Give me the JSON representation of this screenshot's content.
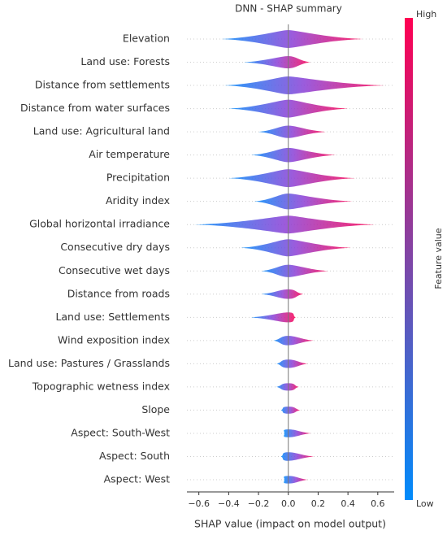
{
  "chart_data": {
    "type": "beeswarm",
    "title": "DNN - SHAP summary",
    "x_label": "SHAP value (impact on model output)",
    "categories": [
      "Elevation",
      "Land use: Forests",
      "Distance from settlements",
      "Distance from water surfaces",
      "Land use: Agricultural land",
      "Air temperature",
      "Precipitation",
      "Aridity index",
      "Global horizontal irradiance",
      "Consecutive dry days",
      "Consecutive wet days",
      "Distance from roads",
      "Land use: Settlements",
      "Wind exposition index",
      "Land use: Pastures / Grasslands",
      "Topographic wetness index",
      "Slope",
      "Aspect: South-West",
      "Aspect: South",
      "Aspect: West"
    ],
    "ranges": [
      [
        -0.45,
        0.5
      ],
      [
        -0.3,
        0.15
      ],
      [
        -0.43,
        0.65
      ],
      [
        -0.4,
        0.4
      ],
      [
        -0.2,
        0.25
      ],
      [
        -0.25,
        0.32
      ],
      [
        -0.4,
        0.45
      ],
      [
        -0.23,
        0.43
      ],
      [
        -0.63,
        0.58
      ],
      [
        -0.32,
        0.42
      ],
      [
        -0.18,
        0.27
      ],
      [
        -0.18,
        0.1
      ],
      [
        -0.25,
        0.05
      ],
      [
        -0.1,
        0.17
      ],
      [
        -0.08,
        0.13
      ],
      [
        -0.08,
        0.07
      ],
      [
        -0.05,
        0.08
      ],
      [
        -0.03,
        0.15
      ],
      [
        -0.05,
        0.17
      ],
      [
        -0.03,
        0.13
      ]
    ],
    "xlim": [
      -0.68,
      0.71
    ],
    "xticks": [
      {
        "value": -0.6,
        "label": "−0.6"
      },
      {
        "value": -0.4,
        "label": "−0.4"
      },
      {
        "value": -0.2,
        "label": "−0.2"
      },
      {
        "value": 0,
        "label": "0.0"
      },
      0.2,
      0.4,
      0.6
    ],
    "colorbar": {
      "label": "Feature value",
      "high": "High",
      "low": "Low",
      "colors": [
        "#ff0052",
        "#008bfb"
      ]
    }
  }
}
